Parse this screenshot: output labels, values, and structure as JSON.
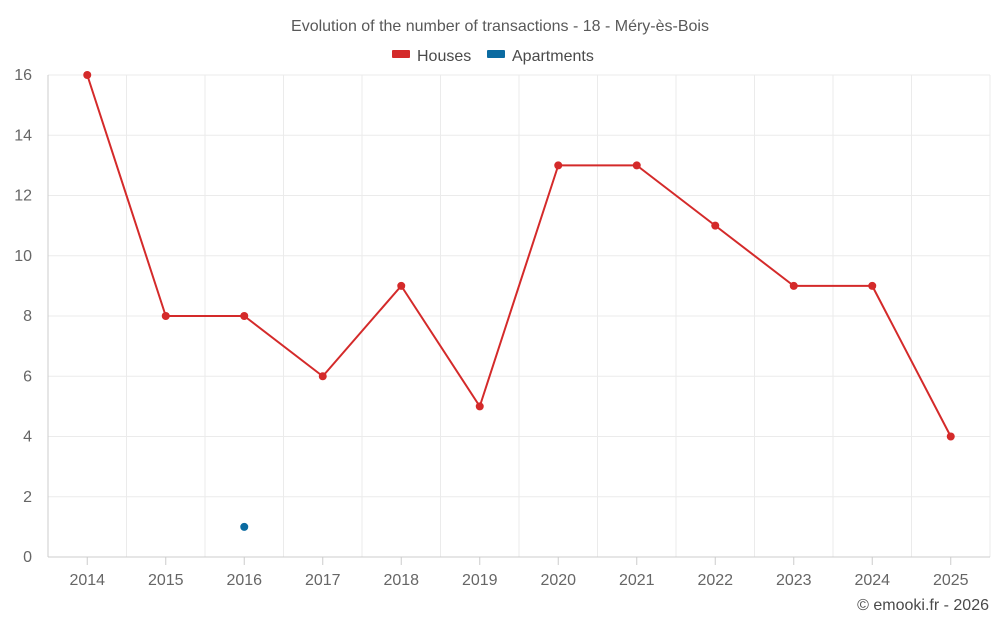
{
  "chart_data": {
    "type": "line",
    "title": "Evolution of the number of transactions - 18 - Méry-ès-Bois",
    "categories": [
      "2014",
      "2015",
      "2016",
      "2017",
      "2018",
      "2019",
      "2020",
      "2021",
      "2022",
      "2023",
      "2024",
      "2025"
    ],
    "series": [
      {
        "name": "Houses",
        "color": "#d42a2a",
        "values": [
          16,
          8,
          8,
          6,
          9,
          5,
          13,
          13,
          11,
          9,
          9,
          4
        ]
      },
      {
        "name": "Apartments",
        "color": "#0b6ba1",
        "values": [
          null,
          null,
          1,
          null,
          null,
          null,
          null,
          null,
          null,
          null,
          null,
          null
        ]
      }
    ],
    "ylim": [
      0,
      16
    ],
    "yticks": [
      0,
      2,
      4,
      6,
      8,
      10,
      12,
      14,
      16
    ],
    "xlabel": "",
    "ylabel": "",
    "grid": true,
    "legend_position": "top-center"
  },
  "credit": "© emooki.fr - 2026"
}
